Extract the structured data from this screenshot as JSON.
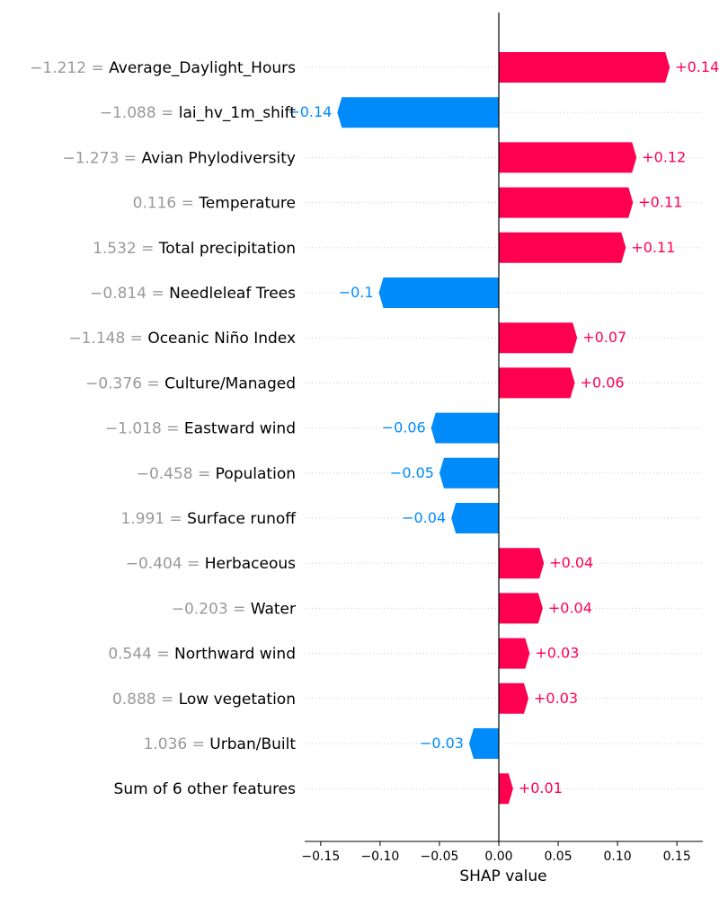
{
  "chart_data": {
    "type": "bar",
    "orientation": "horizontal",
    "xlabel": "SHAP value",
    "xlim": [
      -0.165,
      0.172
    ],
    "xticks": [
      -0.15,
      -0.1,
      -0.05,
      0.0,
      0.05,
      0.1,
      0.15
    ],
    "xtick_labels": [
      "−0.15",
      "−0.10",
      "−0.05",
      "0.00",
      "0.05",
      "0.10",
      "0.15"
    ],
    "grid": "dotted horizontal",
    "colors": {
      "positive": "#ff0051",
      "negative": "#008bfb"
    },
    "features": [
      {
        "value": "−1.212",
        "name": "Average_Daylight_Hours",
        "shap": 0.144,
        "label": "+0.14"
      },
      {
        "value": "−1.088",
        "name": "lai_hv_1m_shift",
        "shap": -0.136,
        "label": "−0.14"
      },
      {
        "value": "−1.273",
        "name": "Avian Phylodiversity",
        "shap": 0.116,
        "label": "+0.12"
      },
      {
        "value": "0.116",
        "name": "Temperature",
        "shap": 0.113,
        "label": "+0.11"
      },
      {
        "value": "1.532",
        "name": "Total precipitation",
        "shap": 0.107,
        "label": "+0.11"
      },
      {
        "value": "−0.814",
        "name": "Needleleaf Trees",
        "shap": -0.101,
        "label": "−0.1"
      },
      {
        "value": "−1.148",
        "name": "Oceanic Niño Index",
        "shap": 0.066,
        "label": "+0.07"
      },
      {
        "value": "−0.376",
        "name": "Culture/Managed",
        "shap": 0.064,
        "label": "+0.06"
      },
      {
        "value": "−1.018",
        "name": "Eastward wind",
        "shap": -0.057,
        "label": "−0.06"
      },
      {
        "value": "−0.458",
        "name": "Population",
        "shap": -0.05,
        "label": "−0.05"
      },
      {
        "value": "1.991",
        "name": "Surface runoff",
        "shap": -0.04,
        "label": "−0.04"
      },
      {
        "value": "−0.404",
        "name": "Herbaceous",
        "shap": 0.038,
        "label": "+0.04"
      },
      {
        "value": "−0.203",
        "name": "Water",
        "shap": 0.037,
        "label": "+0.04"
      },
      {
        "value": "0.544",
        "name": "Northward wind",
        "shap": 0.026,
        "label": "+0.03"
      },
      {
        "value": "0.888",
        "name": "Low vegetation",
        "shap": 0.025,
        "label": "+0.03"
      },
      {
        "value": "1.036",
        "name": "Urban/Built",
        "shap": -0.025,
        "label": "−0.03"
      },
      {
        "value": "",
        "name": "Sum of 6 other features",
        "shap": 0.012,
        "label": "+0.01"
      }
    ]
  }
}
